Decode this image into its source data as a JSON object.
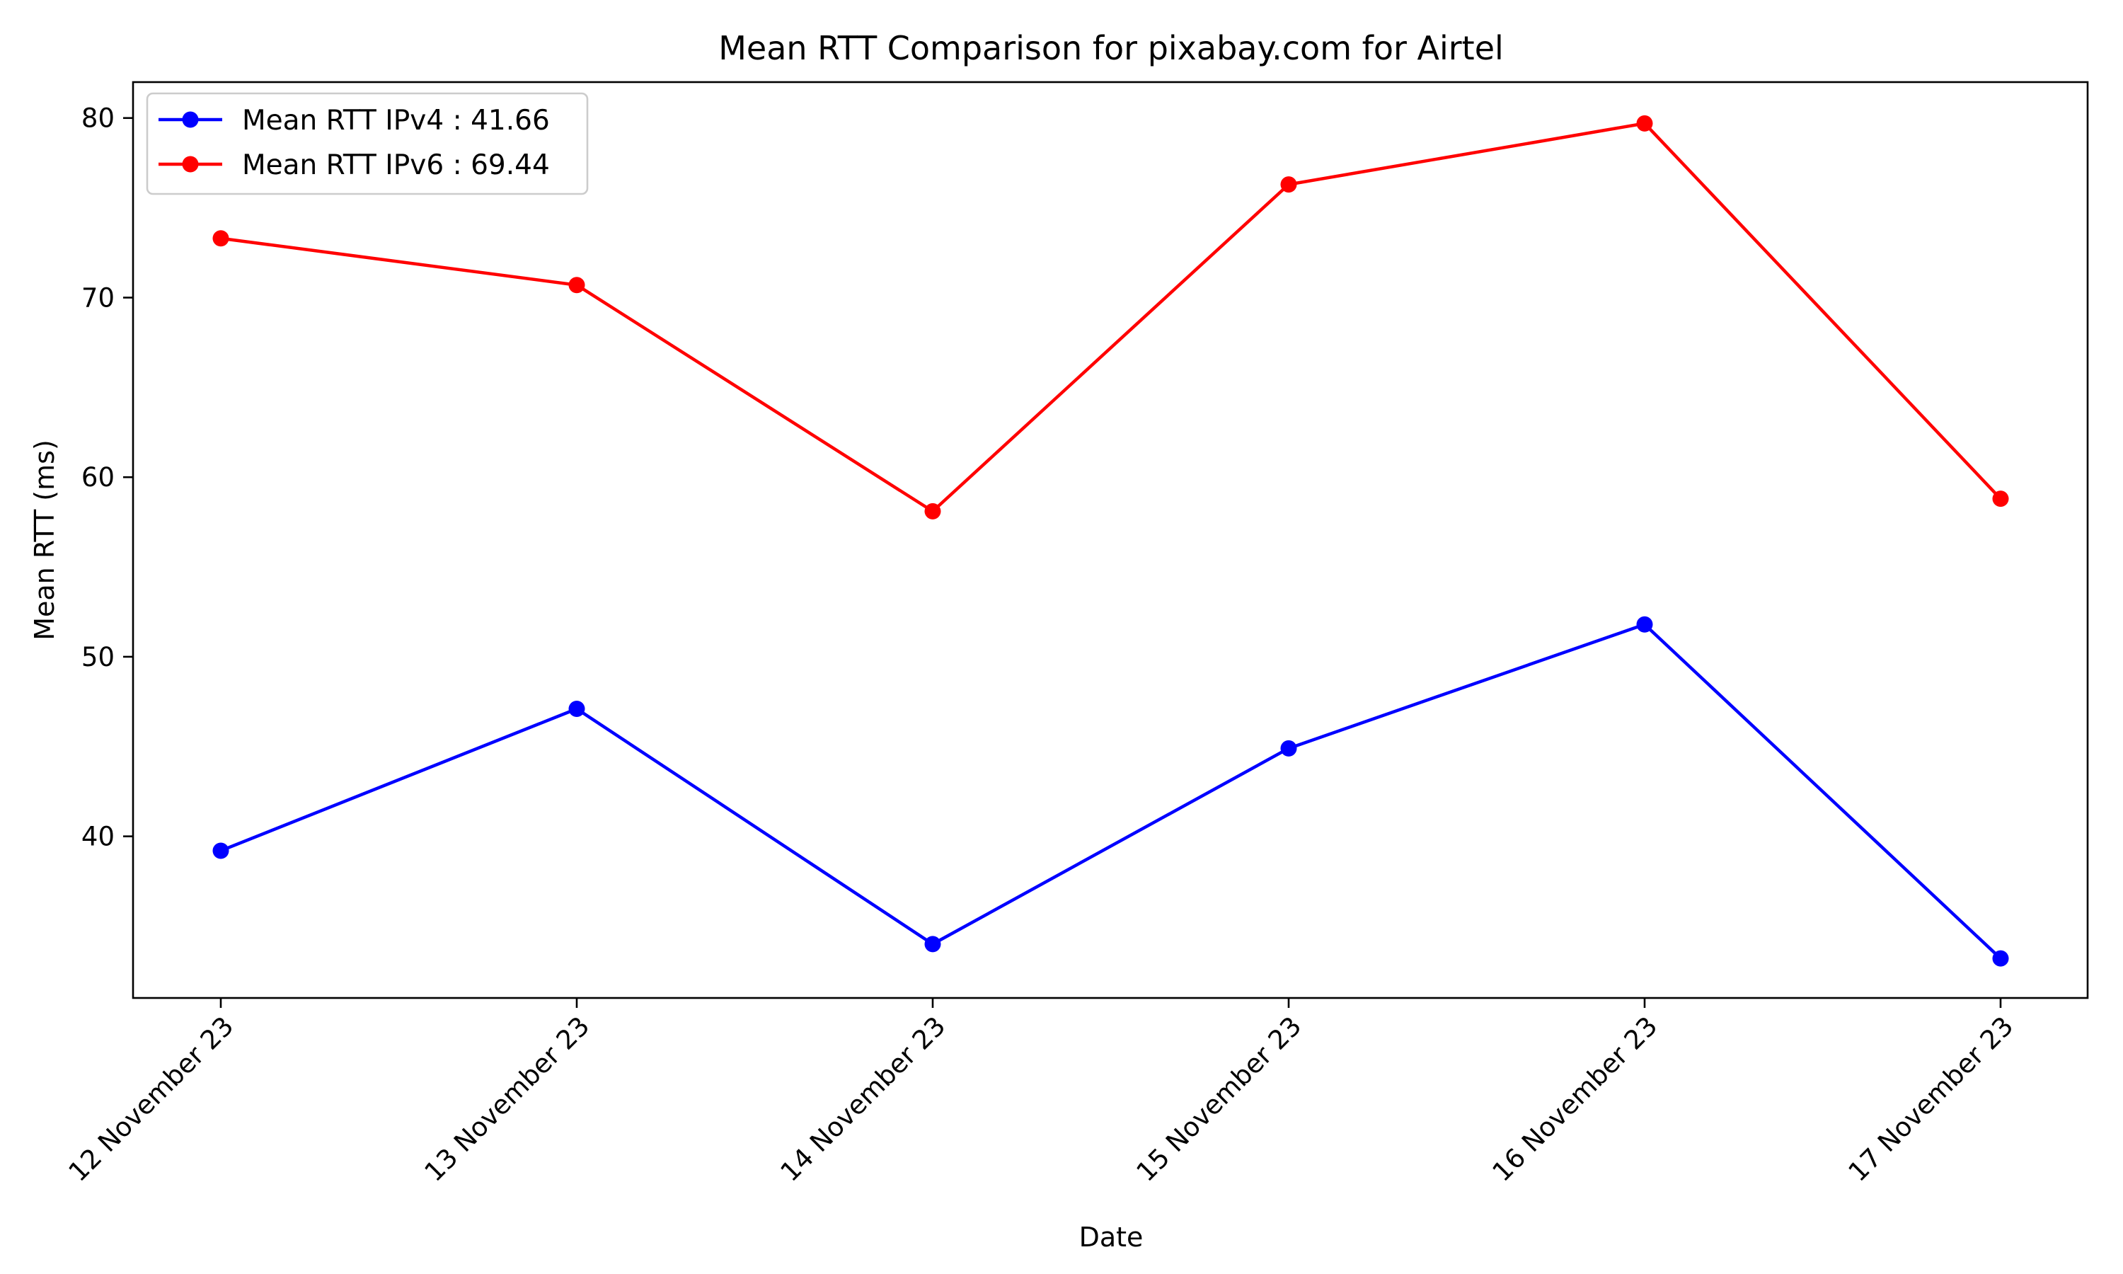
{
  "chart_data": {
    "type": "line",
    "title": "Mean RTT Comparison for pixabay.com for Airtel",
    "xlabel": "Date",
    "ylabel": "Mean RTT (ms)",
    "categories": [
      "12 November 23",
      "13 November 23",
      "14 November 23",
      "15 November 23",
      "16 November 23",
      "17 November 23"
    ],
    "ylim": [
      31,
      82
    ],
    "yticks": [
      40,
      50,
      60,
      70,
      80
    ],
    "grid": false,
    "legend_position": "top-left",
    "x_tick_rotation_deg": 45,
    "series": [
      {
        "name": "Mean RTT IPv4 : 41.66",
        "color": "#0000ff",
        "marker": "circle",
        "values": [
          39.2,
          47.1,
          34.0,
          44.9,
          51.8,
          33.2
        ]
      },
      {
        "name": "Mean RTT IPv6 : 69.44",
        "color": "#ff0000",
        "marker": "circle",
        "values": [
          73.3,
          70.7,
          58.1,
          76.3,
          79.7,
          58.8
        ]
      }
    ]
  }
}
